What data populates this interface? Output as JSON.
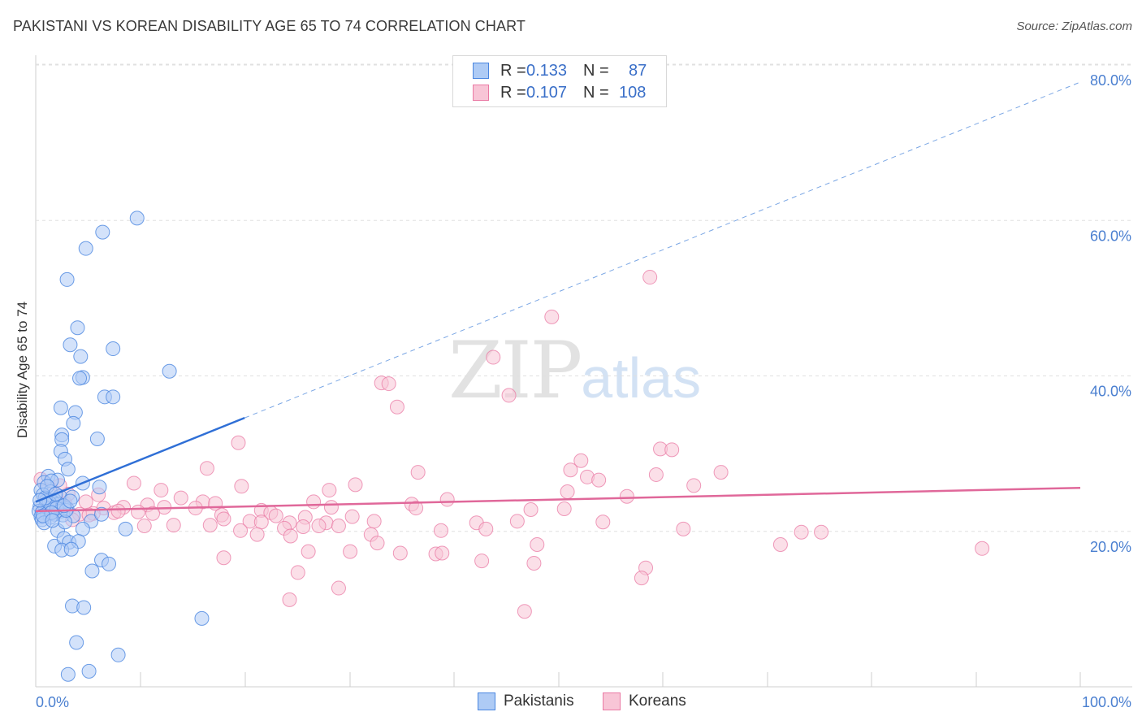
{
  "title": "PAKISTANI VS KOREAN DISABILITY AGE 65 TO 74 CORRELATION CHART",
  "source": "Source: ZipAtlas.com",
  "watermark": {
    "zip": "ZIP",
    "atlas": "atlas"
  },
  "legend": {
    "pakistanis": {
      "r_label": "R =",
      "r_value": "0.133",
      "n_label": "N =",
      "n_value": "87"
    },
    "koreans": {
      "r_label": "R =",
      "r_value": "0.107",
      "n_label": "N =",
      "n_value": "108"
    }
  },
  "bottom_legend": {
    "pakistanis": "Pakistanis",
    "koreans": "Koreans"
  },
  "chart_data": {
    "type": "scatter",
    "title": "PAKISTANI VS KOREAN DISABILITY AGE 65 TO 74 CORRELATION CHART",
    "xlabel": "",
    "ylabel": "Disability Age 65 to 74",
    "xlim": [
      0,
      100
    ],
    "ylim": [
      0,
      82
    ],
    "x_tick_labels": [
      "0.0%",
      "100.0%"
    ],
    "y_ticks": [
      20,
      40,
      60,
      80
    ],
    "y_tick_labels": [
      "20.0%",
      "40.0%",
      "60.0%",
      "80.0%"
    ],
    "colors": {
      "pakistanis": "#4a86e0",
      "koreans": "#ea7aa4",
      "pak_fill": "#aecbf5",
      "kor_fill": "#f8c5d6"
    },
    "series": [
      {
        "name": "Pakistanis",
        "trend": {
          "x": [
            0,
            20
          ],
          "y": [
            23.8,
            34.6
          ],
          "extended_x": [
            20,
            100
          ],
          "extended_y": [
            34.6,
            77.8
          ]
        },
        "points": [
          [
            9.7,
            60.3
          ],
          [
            6.4,
            58.5
          ],
          [
            4.8,
            56.4
          ],
          [
            3.0,
            52.4
          ],
          [
            4.0,
            46.2
          ],
          [
            3.3,
            44.0
          ],
          [
            7.4,
            43.5
          ],
          [
            4.3,
            42.5
          ],
          [
            12.8,
            40.6
          ],
          [
            4.5,
            39.8
          ],
          [
            4.2,
            39.7
          ],
          [
            6.6,
            37.3
          ],
          [
            7.4,
            37.3
          ],
          [
            2.4,
            35.9
          ],
          [
            3.8,
            35.3
          ],
          [
            3.6,
            33.9
          ],
          [
            2.5,
            32.4
          ],
          [
            2.5,
            31.8
          ],
          [
            5.9,
            31.9
          ],
          [
            2.4,
            30.3
          ],
          [
            2.8,
            29.3
          ],
          [
            3.1,
            28.0
          ],
          [
            1.2,
            27.1
          ],
          [
            2.1,
            26.6
          ],
          [
            0.8,
            26.3
          ],
          [
            1.5,
            26.5
          ],
          [
            4.5,
            26.2
          ],
          [
            0.5,
            25.3
          ],
          [
            1.4,
            25.1
          ],
          [
            0.7,
            24.7
          ],
          [
            2.3,
            24.5
          ],
          [
            1.8,
            24.0
          ],
          [
            3.5,
            24.4
          ],
          [
            6.1,
            25.7
          ],
          [
            1.0,
            23.9
          ],
          [
            1.6,
            23.8
          ],
          [
            2.2,
            23.5
          ],
          [
            0.4,
            23.2
          ],
          [
            0.9,
            23.1
          ],
          [
            1.2,
            22.9
          ],
          [
            1.7,
            22.8
          ],
          [
            2.4,
            22.6
          ],
          [
            3.0,
            22.9
          ],
          [
            0.3,
            22.6
          ],
          [
            0.6,
            22.4
          ],
          [
            1.1,
            22.3
          ],
          [
            1.8,
            22.2
          ],
          [
            2.6,
            22.1
          ],
          [
            0.5,
            21.9
          ],
          [
            1.4,
            21.8
          ],
          [
            3.6,
            22.0
          ],
          [
            0.6,
            21.5
          ],
          [
            5.3,
            21.3
          ],
          [
            0.8,
            21.1
          ],
          [
            6.3,
            22.2
          ],
          [
            2.1,
            20.1
          ],
          [
            2.8,
            21.2
          ],
          [
            4.5,
            20.3
          ],
          [
            8.6,
            20.3
          ],
          [
            1.8,
            18.1
          ],
          [
            2.7,
            19.1
          ],
          [
            3.2,
            18.6
          ],
          [
            4.1,
            18.7
          ],
          [
            2.5,
            17.6
          ],
          [
            3.4,
            17.7
          ],
          [
            6.3,
            16.3
          ],
          [
            7.0,
            15.8
          ],
          [
            5.4,
            14.9
          ],
          [
            3.5,
            10.4
          ],
          [
            4.6,
            10.2
          ],
          [
            15.9,
            8.8
          ],
          [
            3.9,
            5.7
          ],
          [
            7.9,
            4.1
          ],
          [
            3.1,
            1.6
          ],
          [
            5.1,
            2.0
          ],
          [
            1.3,
            23.7
          ],
          [
            2.0,
            23.0
          ],
          [
            0.9,
            24.3
          ],
          [
            1.5,
            22.4
          ],
          [
            2.9,
            22.7
          ],
          [
            1.1,
            25.8
          ],
          [
            0.4,
            24.0
          ],
          [
            1.9,
            24.8
          ],
          [
            2.7,
            23.3
          ],
          [
            0.7,
            22.0
          ],
          [
            1.6,
            21.4
          ],
          [
            3.3,
            23.9
          ]
        ]
      },
      {
        "name": "Koreans",
        "trend": {
          "x": [
            0,
            100
          ],
          "y": [
            22.6,
            25.6
          ]
        },
        "points": [
          [
            58.8,
            52.7
          ],
          [
            49.4,
            47.6
          ],
          [
            43.8,
            42.4
          ],
          [
            33.1,
            39.1
          ],
          [
            33.8,
            39.0
          ],
          [
            45.3,
            37.5
          ],
          [
            34.6,
            36.0
          ],
          [
            19.4,
            31.4
          ],
          [
            59.8,
            30.6
          ],
          [
            60.9,
            30.5
          ],
          [
            52.2,
            29.1
          ],
          [
            51.2,
            27.9
          ],
          [
            16.4,
            28.1
          ],
          [
            36.6,
            27.6
          ],
          [
            65.6,
            27.6
          ],
          [
            59.4,
            27.3
          ],
          [
            52.8,
            27.0
          ],
          [
            53.9,
            26.6
          ],
          [
            9.4,
            26.2
          ],
          [
            19.7,
            25.8
          ],
          [
            30.6,
            26.0
          ],
          [
            28.1,
            25.3
          ],
          [
            12.0,
            25.3
          ],
          [
            50.9,
            25.1
          ],
          [
            63.0,
            25.9
          ],
          [
            56.6,
            24.5
          ],
          [
            39.4,
            24.1
          ],
          [
            13.9,
            24.3
          ],
          [
            16.0,
            23.8
          ],
          [
            17.2,
            23.6
          ],
          [
            10.7,
            23.4
          ],
          [
            12.3,
            23.1
          ],
          [
            8.4,
            23.1
          ],
          [
            6.5,
            23.0
          ],
          [
            21.6,
            22.7
          ],
          [
            22.5,
            22.4
          ],
          [
            26.6,
            23.8
          ],
          [
            36.0,
            23.5
          ],
          [
            28.3,
            23.1
          ],
          [
            15.3,
            23.0
          ],
          [
            47.4,
            22.8
          ],
          [
            50.6,
            22.9
          ],
          [
            36.4,
            23.0
          ],
          [
            9.8,
            22.5
          ],
          [
            7.5,
            22.4
          ],
          [
            5.5,
            22.3
          ],
          [
            4.2,
            22.2
          ],
          [
            11.2,
            22.3
          ],
          [
            17.8,
            22.1
          ],
          [
            23.0,
            22.0
          ],
          [
            30.3,
            21.9
          ],
          [
            25.8,
            21.8
          ],
          [
            18.0,
            21.6
          ],
          [
            3.5,
            21.5
          ],
          [
            20.5,
            21.3
          ],
          [
            24.3,
            21.1
          ],
          [
            21.6,
            21.2
          ],
          [
            27.8,
            21.1
          ],
          [
            32.4,
            21.3
          ],
          [
            42.2,
            21.1
          ],
          [
            46.1,
            21.3
          ],
          [
            54.3,
            21.2
          ],
          [
            13.2,
            20.8
          ],
          [
            10.4,
            20.7
          ],
          [
            16.7,
            20.8
          ],
          [
            27.1,
            20.7
          ],
          [
            25.6,
            20.6
          ],
          [
            29.0,
            20.7
          ],
          [
            23.8,
            20.4
          ],
          [
            43.1,
            20.3
          ],
          [
            38.8,
            20.1
          ],
          [
            62.0,
            20.3
          ],
          [
            73.3,
            19.9
          ],
          [
            75.2,
            19.9
          ],
          [
            19.6,
            20.1
          ],
          [
            21.2,
            19.6
          ],
          [
            24.4,
            19.4
          ],
          [
            32.1,
            19.6
          ],
          [
            32.7,
            18.5
          ],
          [
            48.0,
            18.3
          ],
          [
            71.3,
            18.3
          ],
          [
            90.6,
            17.8
          ],
          [
            30.1,
            17.4
          ],
          [
            26.1,
            17.4
          ],
          [
            34.9,
            17.2
          ],
          [
            38.3,
            17.1
          ],
          [
            38.9,
            17.2
          ],
          [
            18.0,
            16.6
          ],
          [
            42.7,
            16.2
          ],
          [
            47.7,
            15.9
          ],
          [
            58.4,
            15.3
          ],
          [
            25.1,
            14.7
          ],
          [
            58.0,
            14.0
          ],
          [
            29.0,
            12.7
          ],
          [
            24.3,
            11.2
          ],
          [
            46.8,
            9.7
          ],
          [
            2.0,
            22.6
          ],
          [
            1.0,
            24.1
          ],
          [
            0.5,
            26.7
          ],
          [
            2.8,
            23.6
          ],
          [
            1.5,
            25.4
          ],
          [
            3.1,
            24.8
          ],
          [
            4.8,
            23.8
          ],
          [
            6.0,
            24.7
          ],
          [
            5.1,
            22.1
          ],
          [
            7.9,
            22.6
          ],
          [
            0.8,
            22.9
          ],
          [
            2.3,
            25.9
          ]
        ]
      }
    ]
  }
}
